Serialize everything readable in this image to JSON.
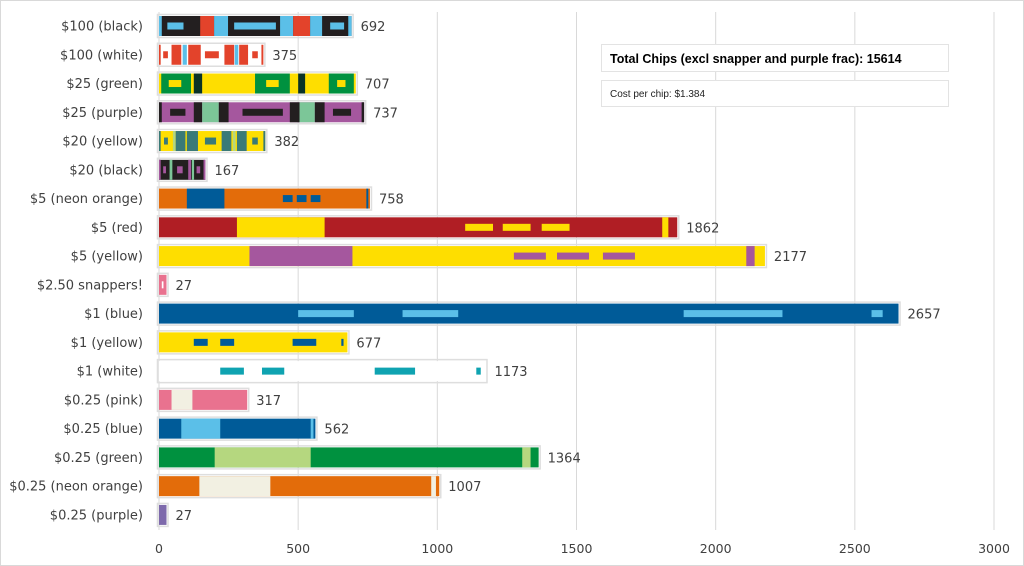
{
  "chart_data": {
    "type": "bar",
    "orientation": "horizontal",
    "title": "",
    "xlabel": "",
    "ylabel": "",
    "xlim": [
      0,
      3000
    ],
    "xticks": [
      0,
      500,
      1000,
      1500,
      2000,
      2500,
      3000
    ],
    "grid": true,
    "annotations": {
      "total": "Total Chips (excl snapper and purple frac): 15614",
      "cost": "Cost per chip: $1.384"
    },
    "bars": [
      {
        "label": "$100 (black)",
        "value": 692,
        "base": "#231f20",
        "segments": [
          [
            0,
            10,
            "#5bbfe8"
          ],
          [
            148,
            198,
            "#e3432b"
          ],
          [
            198,
            248,
            "#5bbfe8"
          ],
          [
            435,
            482,
            "#5bbfe8"
          ],
          [
            482,
            543,
            "#e3432b"
          ],
          [
            543,
            586,
            "#5bbfe8"
          ],
          [
            680,
            692,
            "#5bbfe8"
          ]
        ],
        "dashes": [
          [
            30,
            88,
            "#5bbfe8"
          ],
          [
            270,
            420,
            "#5bbfe8"
          ],
          [
            615,
            665,
            "#5bbfe8"
          ]
        ]
      },
      {
        "label": "$100 (white)",
        "value": 375,
        "base": "#ffffff",
        "segments": [
          [
            0,
            6,
            "#e3432b"
          ],
          [
            45,
            80,
            "#e3432b"
          ],
          [
            85,
            100,
            "#5bbfe8"
          ],
          [
            105,
            150,
            "#e3432b"
          ],
          [
            235,
            270,
            "#e3432b"
          ],
          [
            272,
            285,
            "#5bbfe8"
          ],
          [
            288,
            320,
            "#e3432b"
          ],
          [
            368,
            375,
            "#e3432b"
          ]
        ],
        "dashes": [
          [
            15,
            32,
            "#e3432b"
          ],
          [
            165,
            215,
            "#e3432b"
          ],
          [
            335,
            355,
            "#e3432b"
          ]
        ]
      },
      {
        "label": "$25 (green)",
        "value": 707,
        "base": "#fede00",
        "segments": [
          [
            8,
            115,
            "#00913f"
          ],
          [
            125,
            155,
            "#0a3326"
          ],
          [
            345,
            470,
            "#00913f"
          ],
          [
            500,
            525,
            "#0a3326"
          ],
          [
            610,
            700,
            "#00913f"
          ]
        ],
        "dashes": [
          [
            35,
            80,
            "#fede00"
          ],
          [
            385,
            430,
            "#fede00"
          ],
          [
            640,
            670,
            "#fede00"
          ]
        ]
      },
      {
        "label": "$25 (purple)",
        "value": 737,
        "base": "#a5579e",
        "segments": [
          [
            0,
            10,
            "#231f20"
          ],
          [
            125,
            155,
            "#231f20"
          ],
          [
            155,
            215,
            "#7cc698"
          ],
          [
            215,
            250,
            "#231f20"
          ],
          [
            470,
            505,
            "#231f20"
          ],
          [
            505,
            560,
            "#7cc698"
          ],
          [
            560,
            595,
            "#231f20"
          ],
          [
            728,
            737,
            "#231f20"
          ]
        ],
        "dashes": [
          [
            40,
            95,
            "#231f20"
          ],
          [
            300,
            445,
            "#231f20"
          ],
          [
            625,
            690,
            "#231f20"
          ]
        ]
      },
      {
        "label": "$20 (yellow)",
        "value": 382,
        "base": "#fede00",
        "segments": [
          [
            0,
            6,
            "#3a7a78"
          ],
          [
            50,
            60,
            "#b5d77f"
          ],
          [
            60,
            95,
            "#3a7a78"
          ],
          [
            100,
            140,
            "#3a7a78"
          ],
          [
            225,
            260,
            "#3a7a78"
          ],
          [
            265,
            275,
            "#b5d77f"
          ],
          [
            280,
            315,
            "#3a7a78"
          ],
          [
            375,
            382,
            "#3a7a78"
          ]
        ],
        "dashes": [
          [
            18,
            32,
            "#3a7a78"
          ],
          [
            165,
            205,
            "#3a7a78"
          ],
          [
            335,
            355,
            "#3a7a78"
          ]
        ]
      },
      {
        "label": "$20 (black)",
        "value": 167,
        "base": "#231f20",
        "segments": [
          [
            0,
            6,
            "#a5579e"
          ],
          [
            38,
            48,
            "#7cc698"
          ],
          [
            105,
            115,
            "#a5579e"
          ],
          [
            118,
            126,
            "#7cc698"
          ],
          [
            160,
            167,
            "#a5579e"
          ]
        ],
        "dashes": [
          [
            15,
            25,
            "#a5579e"
          ],
          [
            65,
            85,
            "#a5579e"
          ],
          [
            135,
            148,
            "#a5579e"
          ]
        ]
      },
      {
        "label": "$5 (neon orange)",
        "value": 758,
        "base": "#e36c0a",
        "segments": [
          [
            100,
            235,
            "#005b98"
          ],
          [
            745,
            752,
            "#005b98"
          ]
        ],
        "dashes": [
          [
            445,
            480,
            "#005b98"
          ],
          [
            495,
            530,
            "#005b98"
          ],
          [
            545,
            580,
            "#005b98"
          ]
        ]
      },
      {
        "label": "$5 (red)",
        "value": 1862,
        "base": "#b01e24",
        "segments": [
          [
            280,
            595,
            "#fede00"
          ],
          [
            1808,
            1830,
            "#fede00"
          ]
        ],
        "dashes": [
          [
            1100,
            1200,
            "#fede00"
          ],
          [
            1235,
            1335,
            "#fede00"
          ],
          [
            1375,
            1475,
            "#fede00"
          ]
        ]
      },
      {
        "label": "$5 (yellow)",
        "value": 2177,
        "base": "#fede00",
        "segments": [
          [
            325,
            695,
            "#a5579e"
          ],
          [
            2110,
            2140,
            "#a5579e"
          ]
        ],
        "dashes": [
          [
            1275,
            1390,
            "#a5579e"
          ],
          [
            1430,
            1545,
            "#a5579e"
          ],
          [
            1595,
            1710,
            "#a5579e"
          ]
        ]
      },
      {
        "label": "$2.50 snappers!",
        "value": 27,
        "base": "#e9728f",
        "segments": [],
        "dashes": [
          [
            10,
            16,
            "#ffffff"
          ]
        ]
      },
      {
        "label": "$1 (blue)",
        "value": 2657,
        "base": "#005b98",
        "segments": [],
        "dashes": [
          [
            500,
            700,
            "#5bbfe8"
          ],
          [
            875,
            1075,
            "#5bbfe8"
          ],
          [
            1885,
            2240,
            "#5bbfe8"
          ],
          [
            2560,
            2600,
            "#5bbfe8"
          ]
        ]
      },
      {
        "label": "$1 (yellow)",
        "value": 677,
        "base": "#fede00",
        "segments": [],
        "dashes": [
          [
            125,
            175,
            "#005b98"
          ],
          [
            220,
            270,
            "#005b98"
          ],
          [
            480,
            565,
            "#005b98"
          ],
          [
            655,
            663,
            "#005b98"
          ]
        ]
      },
      {
        "label": "$1 (white)",
        "value": 1173,
        "base": "#ffffff",
        "segments": [],
        "dashes": [
          [
            220,
            305,
            "#0fa3b1"
          ],
          [
            370,
            450,
            "#0fa3b1"
          ],
          [
            775,
            920,
            "#0fa3b1"
          ],
          [
            1140,
            1156,
            "#0fa3b1"
          ]
        ]
      },
      {
        "label": "$0.25 (pink)",
        "value": 317,
        "base": "#e9728f",
        "segments": [
          [
            45,
            120,
            "#f2f0e2"
          ]
        ],
        "dashes": []
      },
      {
        "label": "$0.25 (blue)",
        "value": 562,
        "base": "#005b98",
        "segments": [
          [
            80,
            220,
            "#5bbfe8"
          ],
          [
            545,
            555,
            "#5bbfe8"
          ]
        ],
        "dashes": []
      },
      {
        "label": "$0.25 (green)",
        "value": 1364,
        "base": "#00913f",
        "segments": [
          [
            200,
            545,
            "#b5d77f"
          ],
          [
            1305,
            1335,
            "#b5d77f"
          ]
        ],
        "dashes": []
      },
      {
        "label": "$0.25 (neon orange)",
        "value": 1007,
        "base": "#e36c0a",
        "segments": [
          [
            145,
            400,
            "#f2f0e2"
          ],
          [
            978,
            995,
            "#f2f0e2"
          ]
        ],
        "dashes": []
      },
      {
        "label": "$0.25 (purple)",
        "value": 27,
        "base": "#7e6aac",
        "segments": [],
        "dashes": []
      }
    ]
  }
}
